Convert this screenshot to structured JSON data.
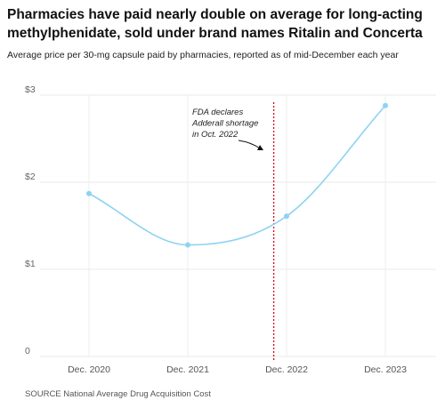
{
  "header": {
    "title": "Pharmacies have paid nearly double on average for long-acting methylphenidate, sold under brand names Ritalin and Concerta",
    "subtitle": "Average price per 30-mg capsule paid by pharmacies, reported as of mid-December each year"
  },
  "footer": {
    "source": "SOURCE National Average Drug Acquisition Cost"
  },
  "chart_data": {
    "type": "line",
    "categories": [
      "Dec. 2020",
      "Dec. 2021",
      "Dec. 2022",
      "Dec. 2023"
    ],
    "values": [
      1.87,
      1.28,
      1.61,
      2.88
    ],
    "ylim": [
      0,
      3
    ],
    "yticks": [
      {
        "value": 0,
        "label": "0"
      },
      {
        "value": 1,
        "label": "$1"
      },
      {
        "value": 2,
        "label": "$2"
      },
      {
        "value": 3,
        "label": "$3"
      }
    ],
    "grid": true,
    "line_color": "#8dd3f2",
    "annotation": {
      "lines": [
        "FDA declares",
        "Adderall shortage",
        "in Oct. 2022"
      ],
      "marker_position": 1.87,
      "marker_color": "#d0021b"
    }
  }
}
